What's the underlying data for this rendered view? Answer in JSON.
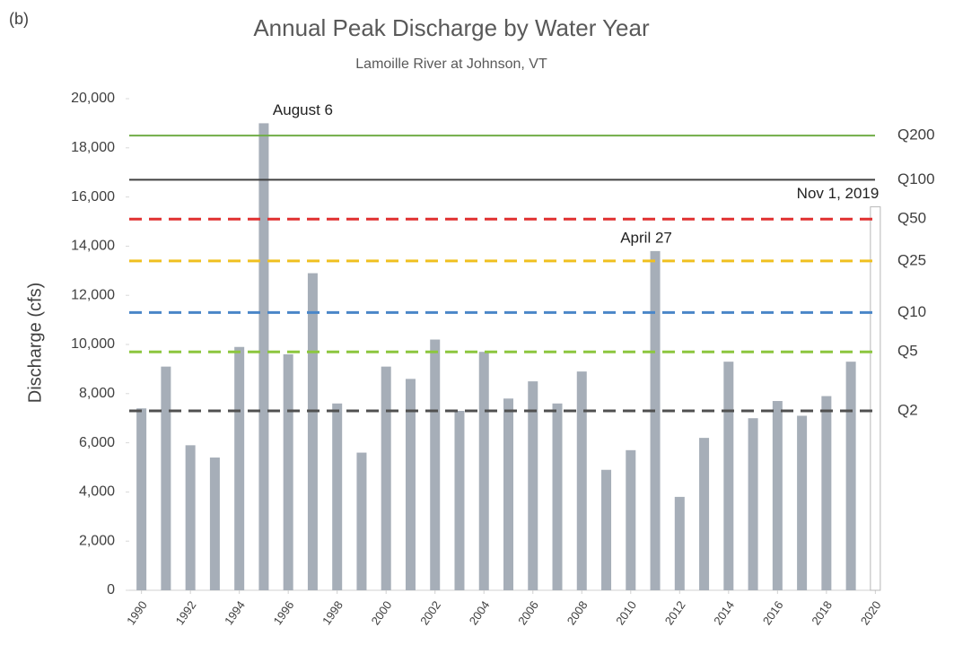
{
  "panel_label": "(b)",
  "chart_data": {
    "type": "bar",
    "title": "Annual Peak Discharge by Water Year",
    "subtitle": "Lamoille River at Johnson, VT",
    "y_label": "Discharge (cfs)",
    "x": [
      1990,
      1991,
      1992,
      1993,
      1994,
      1995,
      1996,
      1997,
      1998,
      1999,
      2000,
      2001,
      2002,
      2003,
      2004,
      2005,
      2006,
      2007,
      2008,
      2009,
      2010,
      2011,
      2012,
      2013,
      2014,
      2015,
      2016,
      2017,
      2018,
      2019,
      2020
    ],
    "values": [
      7400,
      9100,
      5900,
      5400,
      9900,
      19000,
      9600,
      12900,
      7600,
      5600,
      9100,
      8600,
      10200,
      7300,
      9700,
      7800,
      8500,
      7600,
      8900,
      4900,
      5700,
      13800,
      3800,
      6200,
      9300,
      7000,
      7700,
      7100,
      7900,
      9300,
      15600
    ],
    "colors": [
      "#a6aeb8",
      "#a6aeb8",
      "#a6aeb8",
      "#a6aeb8",
      "#a6aeb8",
      "#a6aeb8",
      "#a6aeb8",
      "#a6aeb8",
      "#a6aeb8",
      "#a6aeb8",
      "#a6aeb8",
      "#a6aeb8",
      "#a6aeb8",
      "#a6aeb8",
      "#a6aeb8",
      "#a6aeb8",
      "#a6aeb8",
      "#a6aeb8",
      "#a6aeb8",
      "#a6aeb8",
      "#a6aeb8",
      "#a6aeb8",
      "#a6aeb8",
      "#a6aeb8",
      "#a6aeb8",
      "#a6aeb8",
      "#a6aeb8",
      "#a6aeb8",
      "#a6aeb8",
      "#a6aeb8",
      "#ffffff"
    ],
    "outline": "#b8b8b8",
    "xlim": [
      1989.5,
      2020.5
    ],
    "xticks": [
      1990,
      1992,
      1994,
      1996,
      1998,
      2000,
      2002,
      2004,
      2006,
      2008,
      2010,
      2012,
      2014,
      2016,
      2018,
      2020
    ],
    "ylim": [
      0,
      20000
    ],
    "yticks": [
      0,
      {
        "value": 2000,
        "label": "2,000"
      },
      {
        "value": 4000,
        "label": "4,000"
      },
      {
        "value": 6000,
        "label": "6,000"
      },
      {
        "value": 8000,
        "label": "8,000"
      },
      {
        "value": 10000,
        "label": "10,000"
      },
      {
        "value": 12000,
        "label": "12,000"
      },
      {
        "value": 14000,
        "label": "14,000"
      },
      {
        "value": 16000,
        "label": "16,000"
      },
      {
        "value": 18000,
        "label": "18,000"
      },
      {
        "value": 20000,
        "label": "20,000"
      }
    ],
    "reference_lines": [
      {
        "label": "Q200",
        "value": 18500,
        "color": "#70ad47",
        "dashed": false
      },
      {
        "label": "Q100",
        "value": 16700,
        "color": "#404040",
        "dashed": false
      },
      {
        "label": "Q50",
        "value": 15100,
        "color": "#e03030",
        "dashed": true
      },
      {
        "label": "Q25",
        "value": 13400,
        "color": "#f0c020",
        "dashed": true
      },
      {
        "label": "Q10",
        "value": 11300,
        "color": "#4a86c8",
        "dashed": true
      },
      {
        "label": "Q5",
        "value": 9700,
        "color": "#8cc63f",
        "dashed": true
      },
      {
        "label": "Q2",
        "value": 7300,
        "color": "#505050",
        "dashed": true
      }
    ],
    "annotations": [
      {
        "text": "August 6",
        "x": 1995
      },
      {
        "text": "April 27",
        "x": 2011
      },
      {
        "text": "Nov 1, 2019",
        "x": 2020
      }
    ]
  }
}
